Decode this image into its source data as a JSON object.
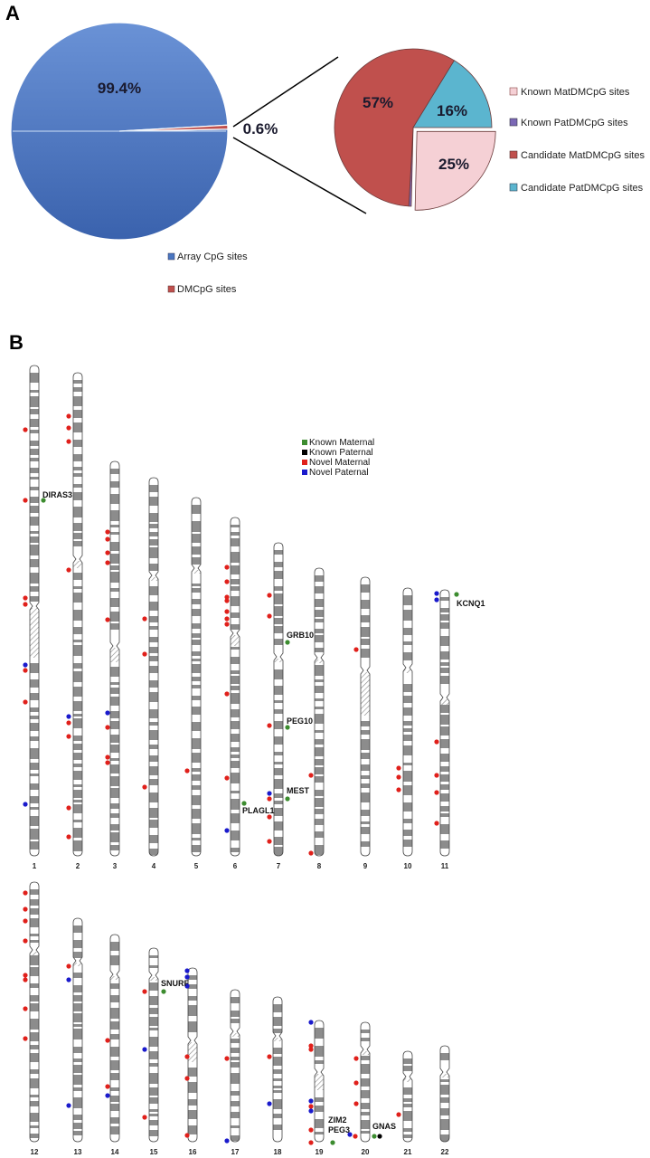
{
  "panels": {
    "a": "A",
    "b": "B"
  },
  "colors": {
    "array_blue": "#4a76c1",
    "dmcpg_red": "#c0504d",
    "known_mat": "#f5d0d5",
    "known_pat": "#7b68b5",
    "cand_mat": "#c0504d",
    "cand_pat": "#5bb5cf",
    "marker_known_maternal": "#3c8c2f",
    "marker_known_paternal": "#000000",
    "marker_novel_maternal": "#e0201b",
    "marker_novel_paternal": "#1a1acc",
    "band_gray": "#8c8c8c"
  },
  "chart_data": [
    {
      "type": "pie",
      "categories": [
        "Array CpG sites",
        "DMCpG sites"
      ],
      "values": [
        99.4,
        0.6
      ],
      "labels": [
        "99.4%",
        "0.6%"
      ],
      "legend_placement": "bottom"
    },
    {
      "type": "pie",
      "categories": [
        "Known MatDMCpG sites",
        "Known PatDMCpG sites",
        "Candidate MatDMCpG sites",
        "Candidate PatDMCpG sites"
      ],
      "values": [
        25,
        0.5,
        57,
        16
      ],
      "labels": [
        "25%",
        "",
        "57%",
        "16%"
      ],
      "legend_placement": "right"
    }
  ],
  "karyogram": {
    "legend": [
      "Known Maternal",
      "Known Paternal",
      "Novel Maternal",
      "Novel Paternal"
    ],
    "chromosomes": [
      "1",
      "2",
      "3",
      "4",
      "5",
      "6",
      "7",
      "8",
      "9",
      "10",
      "11",
      "12",
      "13",
      "14",
      "15",
      "16",
      "17",
      "18",
      "19",
      "20",
      "21",
      "22"
    ],
    "genes": [
      "DIRAS3",
      "GRB10",
      "PEG10",
      "MEST",
      "PLAGL1",
      "KCNQ1",
      "SNURF",
      "ZIM2",
      "PEG3",
      "GNAS"
    ]
  }
}
